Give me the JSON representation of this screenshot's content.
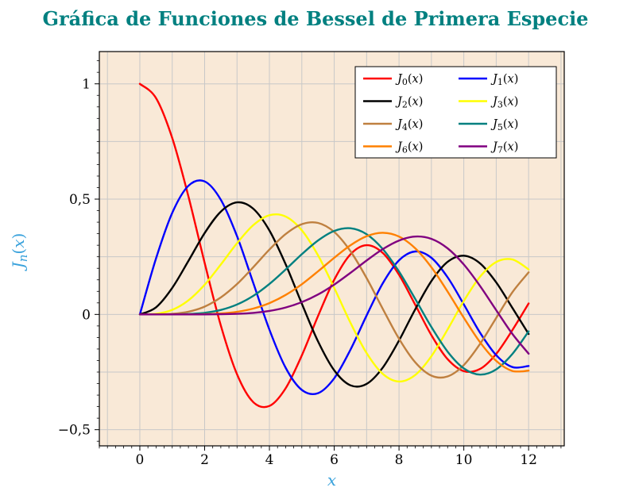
{
  "title": "Gráfica de Funciones de Bessel de Primera Especie",
  "colors": {
    "title": "#008080",
    "axis_label": "#3aa2dc",
    "plot_bg": "#f9e9d7",
    "grid": "#c8c8c8",
    "plot_border": "#000000",
    "tick": "#000000",
    "legend_bg": "#ffffff",
    "legend_border": "#000000"
  },
  "chart_data": {
    "type": "line",
    "title": "Gráfica de Funciones de Bessel de Primera Especie",
    "xlabel": "x",
    "ylabel": "J_n(x)",
    "xlim": [
      -1.25,
      13.1
    ],
    "ylim": [
      -0.57,
      1.14
    ],
    "grid": true,
    "x_major_ticks": [
      0,
      2,
      4,
      6,
      8,
      10,
      12
    ],
    "x_tick_labels": [
      "0",
      "2",
      "4",
      "6",
      "8",
      "10",
      "12"
    ],
    "y_major_ticks": [
      1,
      0.5,
      0,
      -0.5
    ],
    "y_tick_labels": [
      "1",
      "0,5",
      "0",
      "−0,5"
    ],
    "x_minor_step": 0.25,
    "y_minor_step": 0.05,
    "x_grid_step": 1,
    "y_grid_step": 0.25,
    "legend": {
      "position": "top-right",
      "columns": 2
    },
    "x": [
      0,
      0.5,
      1,
      1.5,
      2,
      2.5,
      3,
      3.5,
      4,
      4.5,
      5,
      5.5,
      6,
      6.5,
      7,
      7.5,
      8,
      8.5,
      9,
      9.5,
      10,
      10.5,
      11,
      11.5,
      12
    ],
    "series": [
      {
        "id": "j0",
        "name": "J_0(x)",
        "order": 0,
        "color": "#ff0000",
        "values": [
          1,
          0.9385,
          0.7652,
          0.5118,
          0.2239,
          -0.0484,
          -0.2601,
          -0.3801,
          -0.3971,
          -0.3205,
          -0.1776,
          -0.0068,
          0.1506,
          0.2601,
          0.3001,
          0.2663,
          0.1717,
          0.0419,
          -0.0903,
          -0.1939,
          -0.2459,
          -0.2366,
          -0.1712,
          -0.0677,
          0.0477
        ]
      },
      {
        "id": "j1",
        "name": "J_1(x)",
        "order": 1,
        "color": "#0000ff",
        "values": [
          0,
          0.2423,
          0.4401,
          0.5579,
          0.5767,
          0.4971,
          0.3391,
          0.1374,
          -0.066,
          -0.2311,
          -0.3276,
          -0.3414,
          -0.2767,
          -0.1538,
          -0.0047,
          0.1352,
          0.2346,
          0.2731,
          0.2453,
          0.1613,
          0.0435,
          -0.0789,
          -0.1768,
          -0.2284,
          -0.2234
        ]
      },
      {
        "id": "j2",
        "name": "J_2(x)",
        "order": 2,
        "color": "#000000",
        "values": [
          0,
          0.0306,
          0.1149,
          0.2321,
          0.3528,
          0.4461,
          0.4861,
          0.4586,
          0.3641,
          0.2178,
          0.0466,
          -0.1173,
          -0.2429,
          -0.3074,
          -0.3014,
          -0.2303,
          -0.113,
          0.0223,
          0.1448,
          0.2279,
          0.2546,
          0.2216,
          0.139,
          0.0279,
          -0.0849
        ]
      },
      {
        "id": "j3",
        "name": "J_3(x)",
        "order": 3,
        "color": "#ffff00",
        "values": [
          0,
          0.0026,
          0.0196,
          0.061,
          0.1289,
          0.2166,
          0.3091,
          0.3868,
          0.4302,
          0.4247,
          0.3648,
          0.2561,
          0.1148,
          -0.0353,
          -0.1676,
          -0.2581,
          -0.2911,
          -0.2626,
          -0.1809,
          -0.0653,
          0.0584,
          0.1633,
          0.2273,
          0.2381,
          0.1951
        ]
      },
      {
        "id": "j4",
        "name": "J_4(x)",
        "order": 4,
        "color": "#bf8040",
        "values": [
          0,
          0.0002,
          0.0025,
          0.0118,
          0.034,
          0.0738,
          0.132,
          0.2044,
          0.2811,
          0.3484,
          0.3912,
          0.3967,
          0.3576,
          0.2748,
          0.1578,
          0.0238,
          -0.1054,
          -0.2077,
          -0.2655,
          -0.2691,
          -0.2196,
          -0.1283,
          -0.015,
          0.0963,
          0.1825
        ]
      },
      {
        "id": "j5",
        "name": "J_5(x)",
        "order": 5,
        "color": "#008080",
        "values": [
          0,
          0,
          0.0002,
          0.0018,
          0.007,
          0.0195,
          0.043,
          0.0804,
          0.1321,
          0.1947,
          0.2611,
          0.3209,
          0.3621,
          0.3736,
          0.3479,
          0.2833,
          0.1858,
          0.0671,
          -0.055,
          -0.1613,
          -0.2341,
          -0.2611,
          -0.2383,
          -0.1711,
          -0.0735
        ]
      },
      {
        "id": "j6",
        "name": "J_6(x)",
        "order": 6,
        "color": "#ff8000",
        "values": [
          0,
          0,
          0,
          0.0002,
          0.0012,
          0.0042,
          0.0114,
          0.0254,
          0.0491,
          0.0843,
          0.131,
          0.1868,
          0.2458,
          0.2999,
          0.3392,
          0.3541,
          0.3376,
          0.2867,
          0.2043,
          0.0993,
          -0.0145,
          -0.1203,
          -0.2016,
          -0.2453,
          -0.2437
        ]
      },
      {
        "id": "j7",
        "name": "J_7(x)",
        "order": 7,
        "color": "#800080",
        "values": [
          0,
          0,
          0,
          0,
          0.0002,
          0.0008,
          0.0025,
          0.0067,
          0.0152,
          0.03,
          0.0534,
          0.0866,
          0.1296,
          0.1801,
          0.2336,
          0.2833,
          0.3206,
          0.3377,
          0.3275,
          0.2867,
          0.2167,
          0.1236,
          0.0184,
          -0.0849,
          -0.1703
        ]
      }
    ]
  }
}
